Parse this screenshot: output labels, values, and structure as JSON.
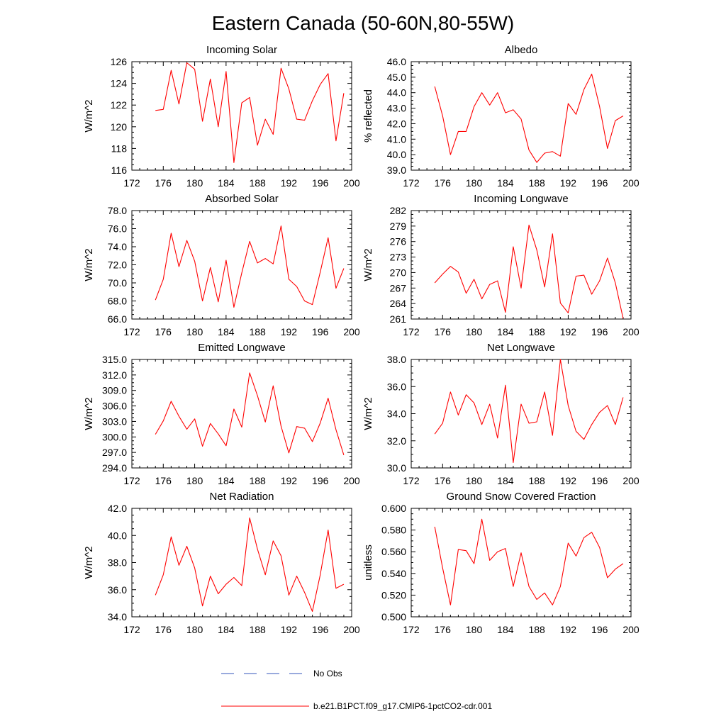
{
  "figure": {
    "title": "Eastern Canada (50-60N,80-55W)"
  },
  "legend": [
    {
      "label": "No Obs",
      "color": "#3355bb",
      "style": "dashed"
    },
    {
      "label": "b.e21.B1PCT.f09_g17.CMIP6-1pctCO2-cdr.001",
      "color": "#ff0000",
      "style": "solid"
    }
  ],
  "chart_data": [
    {
      "type": "line",
      "title": "Incoming Solar",
      "ylabel": "W/m^2",
      "xlim": [
        172,
        200
      ],
      "ylim": [
        116,
        126
      ],
      "xticks": [
        "172",
        "176",
        "180",
        "184",
        "188",
        "192",
        "196",
        "200"
      ],
      "yticks": [
        "116",
        "118",
        "120",
        "122",
        "124",
        "126"
      ],
      "series": [
        {
          "color": "#ff0000",
          "x": [
            175,
            176,
            177,
            178,
            179,
            180,
            181,
            182,
            183,
            184,
            185,
            186,
            187,
            188,
            189,
            190,
            191,
            192,
            193,
            194,
            195,
            196,
            197,
            198,
            199
          ],
          "y": [
            121.5,
            121.6,
            125.2,
            122.1,
            125.9,
            125.3,
            120.5,
            124.4,
            120.0,
            125.1,
            116.7,
            122.2,
            122.7,
            118.3,
            120.7,
            119.3,
            125.4,
            123.5,
            120.7,
            120.6,
            122.4,
            123.9,
            124.9,
            118.7,
            123.1
          ]
        }
      ]
    },
    {
      "type": "line",
      "title": "Albedo",
      "ylabel": "% reflected",
      "xlim": [
        172,
        200
      ],
      "ylim": [
        39.0,
        46.0
      ],
      "xticks": [
        "172",
        "176",
        "180",
        "184",
        "188",
        "192",
        "196",
        "200"
      ],
      "yticks": [
        "39.0",
        "40.0",
        "41.0",
        "42.0",
        "43.0",
        "44.0",
        "45.0",
        "46.0"
      ],
      "series": [
        {
          "color": "#ff0000",
          "x": [
            175,
            176,
            177,
            178,
            179,
            180,
            181,
            182,
            183,
            184,
            185,
            186,
            187,
            188,
            189,
            190,
            191,
            192,
            193,
            194,
            195,
            196,
            197,
            198,
            199
          ],
          "y": [
            44.4,
            42.5,
            40.0,
            41.5,
            41.5,
            43.1,
            44.0,
            43.2,
            44.0,
            42.7,
            42.9,
            42.3,
            40.3,
            39.5,
            40.1,
            40.2,
            39.9,
            43.3,
            42.6,
            44.2,
            45.2,
            43.1,
            40.4,
            42.2,
            42.5
          ]
        }
      ]
    },
    {
      "type": "line",
      "title": "Absorbed Solar",
      "ylabel": "W/m^2",
      "xlim": [
        172,
        200
      ],
      "ylim": [
        66.0,
        78.0
      ],
      "xticks": [
        "172",
        "176",
        "180",
        "184",
        "188",
        "192",
        "196",
        "200"
      ],
      "yticks": [
        "66.0",
        "68.0",
        "70.0",
        "72.0",
        "74.0",
        "76.0",
        "78.0"
      ],
      "series": [
        {
          "color": "#ff0000",
          "x": [
            175,
            176,
            177,
            178,
            179,
            180,
            181,
            182,
            183,
            184,
            185,
            186,
            187,
            188,
            189,
            190,
            191,
            192,
            193,
            194,
            195,
            196,
            197,
            198,
            199
          ],
          "y": [
            68.1,
            70.4,
            75.5,
            71.8,
            74.7,
            72.4,
            68.0,
            71.7,
            67.9,
            72.5,
            67.3,
            71.1,
            74.6,
            72.2,
            72.7,
            72.1,
            76.3,
            70.4,
            69.6,
            68.0,
            67.6,
            71.2,
            75.0,
            69.4,
            71.6
          ]
        }
      ]
    },
    {
      "type": "line",
      "title": "Incoming Longwave",
      "ylabel": "W/m^2",
      "xlim": [
        172,
        200
      ],
      "ylim": [
        261,
        282
      ],
      "xticks": [
        "172",
        "176",
        "180",
        "184",
        "188",
        "192",
        "196",
        "200"
      ],
      "yticks": [
        "261",
        "264",
        "267",
        "270",
        "273",
        "276",
        "279",
        "282"
      ],
      "series": [
        {
          "color": "#ff0000",
          "x": [
            175,
            176,
            177,
            178,
            179,
            180,
            181,
            182,
            183,
            184,
            185,
            186,
            187,
            188,
            189,
            190,
            191,
            192,
            193,
            194,
            195,
            196,
            197,
            198,
            199
          ],
          "y": [
            268.0,
            269.7,
            271.2,
            270.1,
            266.0,
            268.7,
            264.9,
            267.7,
            268.4,
            262.3,
            275.0,
            267.0,
            279.2,
            274.4,
            267.2,
            277.5,
            264.1,
            262.2,
            269.3,
            269.5,
            265.8,
            268.4,
            272.8,
            268.0,
            261.1
          ]
        }
      ]
    },
    {
      "type": "line",
      "title": "Emitted Longwave",
      "ylabel": "W/m^2",
      "xlim": [
        172,
        200
      ],
      "ylim": [
        294.0,
        315.0
      ],
      "xticks": [
        "172",
        "176",
        "180",
        "184",
        "188",
        "192",
        "196",
        "200"
      ],
      "yticks": [
        "294.0",
        "297.0",
        "300.0",
        "303.0",
        "306.0",
        "309.0",
        "312.0",
        "315.0"
      ],
      "series": [
        {
          "color": "#ff0000",
          "x": [
            175,
            176,
            177,
            178,
            179,
            180,
            181,
            182,
            183,
            184,
            185,
            186,
            187,
            188,
            189,
            190,
            191,
            192,
            193,
            194,
            195,
            196,
            197,
            198,
            199
          ],
          "y": [
            300.5,
            303.1,
            306.9,
            304.0,
            301.5,
            303.5,
            298.2,
            302.6,
            300.6,
            298.3,
            305.4,
            301.9,
            312.4,
            308.0,
            302.9,
            309.9,
            302.1,
            296.9,
            302.0,
            301.7,
            299.1,
            302.7,
            307.5,
            301.4,
            296.5
          ]
        }
      ]
    },
    {
      "type": "line",
      "title": "Net Longwave",
      "ylabel": "W/m^2",
      "xlim": [
        172,
        200
      ],
      "ylim": [
        30.0,
        38.0
      ],
      "xticks": [
        "172",
        "176",
        "180",
        "184",
        "188",
        "192",
        "196",
        "200"
      ],
      "yticks": [
        "30.0",
        "32.0",
        "34.0",
        "36.0",
        "38.0"
      ],
      "series": [
        {
          "color": "#ff0000",
          "x": [
            175,
            176,
            177,
            178,
            179,
            180,
            181,
            182,
            183,
            184,
            185,
            186,
            187,
            188,
            189,
            190,
            191,
            192,
            193,
            194,
            195,
            196,
            197,
            198,
            199
          ],
          "y": [
            32.5,
            33.3,
            35.6,
            33.9,
            35.4,
            34.8,
            33.2,
            34.7,
            32.2,
            36.1,
            30.4,
            34.7,
            33.3,
            33.4,
            35.6,
            32.4,
            38.0,
            34.6,
            32.7,
            32.1,
            33.2,
            34.1,
            34.6,
            33.2,
            35.2
          ]
        }
      ]
    },
    {
      "type": "line",
      "title": "Net Radiation",
      "ylabel": "W/m^2",
      "xlim": [
        172,
        200
      ],
      "ylim": [
        34.0,
        42.0
      ],
      "xticks": [
        "172",
        "176",
        "180",
        "184",
        "188",
        "192",
        "196",
        "200"
      ],
      "yticks": [
        "34.0",
        "36.0",
        "38.0",
        "40.0",
        "42.0"
      ],
      "series": [
        {
          "color": "#ff0000",
          "x": [
            175,
            176,
            177,
            178,
            179,
            180,
            181,
            182,
            183,
            184,
            185,
            186,
            187,
            188,
            189,
            190,
            191,
            192,
            193,
            194,
            195,
            196,
            197,
            198,
            199
          ],
          "y": [
            35.6,
            37.1,
            39.9,
            37.8,
            39.2,
            37.6,
            34.8,
            37.0,
            35.7,
            36.4,
            36.9,
            36.3,
            41.3,
            39.0,
            37.1,
            39.6,
            38.5,
            35.6,
            37.0,
            35.8,
            34.4,
            37.1,
            40.4,
            36.1,
            36.4
          ]
        }
      ]
    },
    {
      "type": "line",
      "title": "Ground Snow Covered Fraction",
      "ylabel": "unitless",
      "xlim": [
        172,
        200
      ],
      "ylim": [
        0.5,
        0.6
      ],
      "xticks": [
        "172",
        "176",
        "180",
        "184",
        "188",
        "192",
        "196",
        "200"
      ],
      "yticks": [
        "0.500",
        "0.520",
        "0.540",
        "0.560",
        "0.580",
        "0.600"
      ],
      "series": [
        {
          "color": "#ff0000",
          "x": [
            175,
            176,
            177,
            178,
            179,
            180,
            181,
            182,
            183,
            184,
            185,
            186,
            187,
            188,
            189,
            190,
            191,
            192,
            193,
            194,
            195,
            196,
            197,
            198,
            199
          ],
          "y": [
            0.583,
            0.545,
            0.511,
            0.562,
            0.561,
            0.549,
            0.59,
            0.552,
            0.56,
            0.563,
            0.528,
            0.559,
            0.528,
            0.516,
            0.522,
            0.511,
            0.528,
            0.568,
            0.556,
            0.573,
            0.578,
            0.564,
            0.536,
            0.544,
            0.549
          ]
        }
      ]
    }
  ]
}
